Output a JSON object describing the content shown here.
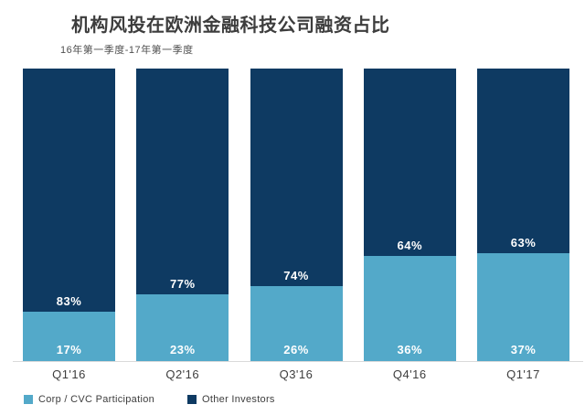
{
  "header": {
    "title": "机构风投在欧洲金融科技公司融资占比",
    "subtitle": "16年第一季度-17年第一季度"
  },
  "chart_data": {
    "type": "bar",
    "stacked": true,
    "title": "机构风投在欧洲金融科技公司融资占比",
    "subtitle": "16年第一季度-17年第一季度",
    "categories": [
      "Q1'16",
      "Q2'16",
      "Q3'16",
      "Q4'16",
      "Q1'17"
    ],
    "series": [
      {
        "name": "Corp / CVC Participation",
        "color": "#53A9C9",
        "values": [
          17,
          23,
          26,
          36,
          37
        ]
      },
      {
        "name": "Other Investors",
        "color": "#0E3A62",
        "values": [
          83,
          77,
          74,
          64,
          63
        ]
      }
    ],
    "value_suffix": "%",
    "ylim": [
      0,
      100
    ],
    "grid": false,
    "xlabel": "",
    "ylabel": "",
    "legend_position": "bottom-left"
  },
  "legend": {
    "items": [
      {
        "label": "Corp / CVC Participation",
        "color": "#53A9C9"
      },
      {
        "label": "Other Investors",
        "color": "#0E3A62"
      }
    ]
  },
  "colors": {
    "corp_cvc": "#53A9C9",
    "other_investors": "#0E3A62",
    "axis_line": "#dadada",
    "text": "#3d3d3d"
  }
}
